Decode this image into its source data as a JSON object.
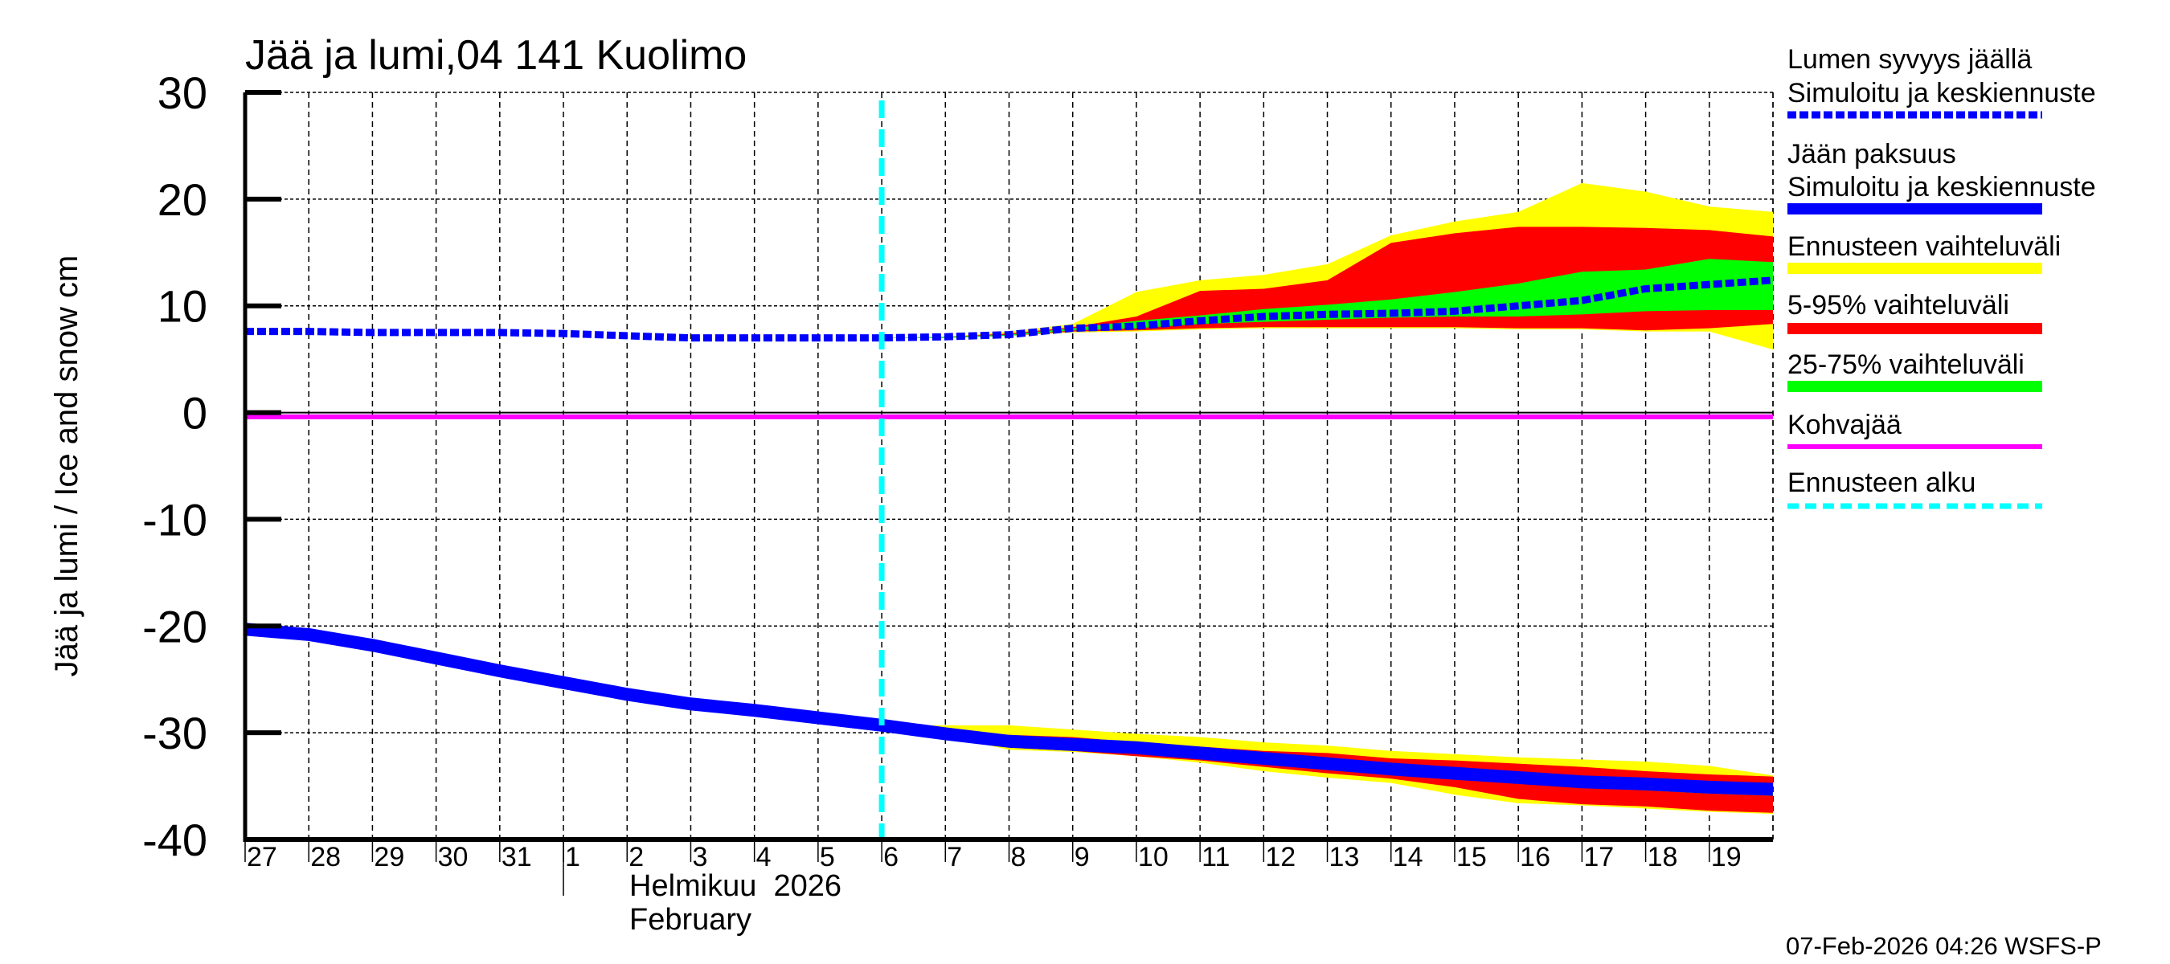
{
  "chart_data": {
    "type": "area",
    "title": "Jää ja lumi,04 141 Kuolimo",
    "ylabel": "Jää ja lumi / Ice and snow    cm",
    "xlabel_month_fi": "Helmikuu  2026",
    "xlabel_month_en": "February",
    "footer": "07-Feb-2026 04:26 WSFS-P",
    "ylim": [
      -40,
      30
    ],
    "yticks": [
      30,
      20,
      10,
      0,
      -10,
      -20,
      -30,
      -40
    ],
    "grid": true,
    "legend_position": "right",
    "x_tick_labels": [
      "27",
      "28",
      "29",
      "30",
      "31",
      "1",
      "2",
      "3",
      "4",
      "5",
      "6",
      "7",
      "8",
      "9",
      "10",
      "11",
      "12",
      "13",
      "14",
      "15",
      "16",
      "17",
      "18",
      "19"
    ],
    "x_dates": [
      "2026-01-27",
      "2026-01-28",
      "2026-01-29",
      "2026-01-30",
      "2026-01-31",
      "2026-02-01",
      "2026-02-02",
      "2026-02-03",
      "2026-02-04",
      "2026-02-05",
      "2026-02-06",
      "2026-02-07",
      "2026-02-08",
      "2026-02-09",
      "2026-02-10",
      "2026-02-11",
      "2026-02-12",
      "2026-02-13",
      "2026-02-14",
      "2026-02-15",
      "2026-02-16",
      "2026-02-17",
      "2026-02-18",
      "2026-02-19",
      "2026-02-20"
    ],
    "forecast_start": "2026-02-06",
    "forecast_dates": [
      "2026-02-06",
      "2026-02-07",
      "2026-02-08",
      "2026-02-09",
      "2026-02-10",
      "2026-02-11",
      "2026-02-12",
      "2026-02-13",
      "2026-02-14",
      "2026-02-15",
      "2026-02-16",
      "2026-02-17",
      "2026-02-18",
      "2026-02-19",
      "2026-02-20"
    ],
    "series": [
      {
        "name": "Lumen syvyys jäällä Simuloitu ja keskiennuste",
        "color": "#0000ff",
        "style": "dashed",
        "values": [
          7.6,
          7.6,
          7.5,
          7.5,
          7.5,
          7.4,
          7.2,
          7.0,
          7.0,
          7.0,
          7.0,
          7.1,
          7.3,
          7.9,
          8.1,
          8.6,
          9.0,
          9.2,
          9.3,
          9.5,
          10.0,
          10.5,
          11.6,
          12.0,
          12.4
        ]
      },
      {
        "name": "Jään paksuus Simuloitu ja keskiennuste",
        "color": "#0000ff",
        "style": "solid",
        "values": [
          -20.3,
          -20.8,
          -21.8,
          -23.0,
          -24.2,
          -25.3,
          -26.4,
          -27.3,
          -27.9,
          -28.6,
          -29.3,
          -30.1,
          -30.8,
          -31.1,
          -31.4,
          -31.9,
          -32.4,
          -32.9,
          -33.4,
          -33.8,
          -34.2,
          -34.6,
          -34.8,
          -35.1,
          -35.3
        ]
      },
      {
        "name": "Kohvajää",
        "color": "#ff00ff",
        "style": "solid",
        "value": -0.4
      }
    ],
    "bands": {
      "snow": {
        "Ennusteen vaihteluväli": {
          "color": "#ffff00",
          "upper": [
            7.0,
            7.1,
            7.6,
            8.3,
            11.3,
            12.4,
            12.9,
            13.9,
            16.6,
            17.9,
            18.8,
            21.5,
            20.7,
            19.3,
            18.8
          ],
          "lower": [
            7.0,
            7.0,
            7.2,
            7.5,
            7.6,
            7.8,
            7.9,
            7.9,
            7.9,
            7.9,
            7.8,
            7.8,
            7.6,
            7.6,
            5.9
          ]
        },
        "5-95% vaihteluväli": {
          "color": "#ff0000",
          "upper": [
            7.0,
            7.1,
            7.4,
            8.0,
            9.0,
            11.4,
            11.6,
            12.4,
            15.9,
            16.8,
            17.4,
            17.4,
            17.3,
            17.1,
            16.5
          ],
          "lower": [
            7.0,
            7.0,
            7.2,
            7.6,
            7.7,
            7.9,
            8.0,
            8.0,
            8.0,
            8.0,
            7.9,
            7.9,
            7.7,
            7.9,
            8.3
          ]
        },
        "25-75% vaihteluväli": {
          "color": "#00ff00",
          "upper": [
            7.0,
            7.1,
            7.3,
            7.9,
            8.6,
            9.1,
            9.7,
            10.1,
            10.6,
            11.3,
            12.1,
            13.2,
            13.4,
            14.4,
            14.1
          ],
          "lower": [
            7.0,
            7.0,
            7.2,
            7.7,
            7.9,
            8.3,
            8.5,
            8.7,
            8.9,
            9.0,
            9.0,
            9.2,
            9.5,
            9.6,
            9.6
          ]
        }
      },
      "ice": {
        "Ennusteen vaihteluväli": {
          "color": "#ffff00",
          "upper": [
            -29.3,
            -29.3,
            -29.3,
            -29.7,
            -30.1,
            -30.4,
            -30.9,
            -31.2,
            -31.7,
            -32.0,
            -32.3,
            -32.5,
            -32.7,
            -33.1,
            -34.0
          ],
          "lower": [
            -29.3,
            -30.3,
            -31.6,
            -31.8,
            -32.2,
            -32.8,
            -33.6,
            -34.2,
            -34.7,
            -35.8,
            -36.6,
            -36.8,
            -37.1,
            -37.4,
            -37.6
          ]
        },
        "5-95% vaihteluväli": {
          "color": "#ff0000",
          "upper": [
            -29.3,
            -29.9,
            -30.2,
            -30.4,
            -30.9,
            -31.3,
            -31.7,
            -31.9,
            -32.4,
            -32.6,
            -32.9,
            -33.2,
            -33.6,
            -33.9,
            -34.1
          ],
          "lower": [
            -29.3,
            -30.2,
            -31.4,
            -31.7,
            -32.2,
            -32.6,
            -33.2,
            -33.8,
            -34.3,
            -35.1,
            -36.2,
            -36.7,
            -36.9,
            -37.3,
            -37.5
          ]
        },
        "25-75% vaihteluväli": {
          "color": "#00ff00",
          "upper": [
            -29.3,
            -29.9,
            -30.4,
            -30.7,
            -31.0,
            -31.5,
            -32.0,
            -32.5,
            -32.9,
            -33.3,
            -33.7,
            -34.1,
            -34.3,
            -34.6,
            -34.8
          ],
          "lower": [
            -29.3,
            -30.2,
            -31.1,
            -31.5,
            -31.8,
            -32.3,
            -32.8,
            -33.3,
            -33.9,
            -34.3,
            -34.8,
            -35.1,
            -35.4,
            -35.7,
            -35.9
          ]
        }
      }
    },
    "legend": [
      {
        "line1": "Lumen syvyys jäällä",
        "line2": "Simuloitu ja keskiennuste",
        "color": "#0000ff",
        "style": "dashed"
      },
      {
        "line1": "Jään paksuus",
        "line2": "Simuloitu ja keskiennuste",
        "color": "#0000ff",
        "style": "solid"
      },
      {
        "line1": "Ennusteen vaihteluväli",
        "color": "#ffff00",
        "style": "bar"
      },
      {
        "line1": "5-95% vaihteluväli",
        "color": "#ff0000",
        "style": "bar"
      },
      {
        "line1": "25-75% vaihteluväli",
        "color": "#00ff00",
        "style": "bar"
      },
      {
        "line1": "Kohvajää",
        "color": "#ff00ff",
        "style": "thin"
      },
      {
        "line1": "Ennusteen alku",
        "color": "#00ffff",
        "style": "dashed-thin"
      }
    ]
  }
}
